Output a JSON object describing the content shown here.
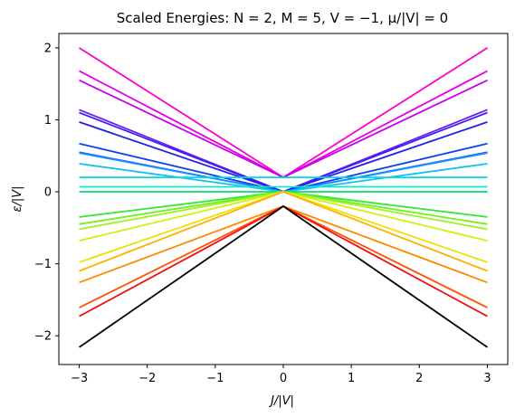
{
  "chart_data": {
    "type": "line",
    "title": "Scaled Energies: N = 2, M = 5, V = −1, μ/|V| = 0",
    "xlabel": "J/|V|",
    "ylabel": "ε/|V|",
    "xlim": [
      -3.3,
      3.3
    ],
    "ylim": [
      -2.4,
      2.2
    ],
    "xticks": [
      -3,
      -2,
      -1,
      0,
      1,
      2,
      3
    ],
    "xtick_labels": [
      "−3",
      "−2",
      "−1",
      "0",
      "1",
      "2",
      "3"
    ],
    "yticks": [
      -2,
      -1,
      0,
      1,
      2
    ],
    "ytick_labels": [
      "−2",
      "−1",
      "0",
      "1",
      "2"
    ],
    "grid": false,
    "legend": "none",
    "x": [
      -3,
      0,
      3
    ],
    "series": [
      {
        "values": [
          2.0,
          0.2,
          2.0
        ],
        "color": "#ff00c8"
      },
      {
        "values": [
          1.68,
          0.2,
          1.68
        ],
        "color": "#e600e6"
      },
      {
        "values": [
          1.55,
          0.2,
          1.55
        ],
        "color": "#c800f0"
      },
      {
        "values": [
          1.14,
          0.0,
          1.14
        ],
        "color": "#6a1cf0"
      },
      {
        "values": [
          1.1,
          0.0,
          1.1
        ],
        "color": "#4020f0"
      },
      {
        "values": [
          0.97,
          0.0,
          0.97
        ],
        "color": "#2020e8"
      },
      {
        "values": [
          0.67,
          0.0,
          0.67
        ],
        "color": "#1040f0"
      },
      {
        "values": [
          0.55,
          0.0,
          0.55
        ],
        "color": "#1060ff"
      },
      {
        "values": [
          0.54,
          0.0,
          0.54
        ],
        "color": "#1890ff"
      },
      {
        "values": [
          0.39,
          0.0,
          0.39
        ],
        "color": "#10c0f0"
      },
      {
        "values": [
          0.2,
          0.2,
          0.2
        ],
        "color": "#00d8e8"
      },
      {
        "values": [
          0.07,
          0.07,
          0.07
        ],
        "color": "#10e8c8"
      },
      {
        "values": [
          0.0,
          0.0,
          0.0
        ],
        "color": "#00e070"
      },
      {
        "values": [
          -0.35,
          0.0,
          -0.35
        ],
        "color": "#30e830"
      },
      {
        "values": [
          -0.45,
          0.0,
          -0.45
        ],
        "color": "#70f020"
      },
      {
        "values": [
          -0.52,
          0.0,
          -0.52
        ],
        "color": "#a0f020"
      },
      {
        "values": [
          -0.68,
          0.0,
          -0.68
        ],
        "color": "#d0f010"
      },
      {
        "values": [
          -0.98,
          0.0,
          -0.98
        ],
        "color": "#f0e000"
      },
      {
        "values": [
          -1.1,
          0.0,
          -1.1
        ],
        "color": "#ffb000"
      },
      {
        "values": [
          -1.26,
          -0.2,
          -1.26
        ],
        "color": "#ff8800"
      },
      {
        "values": [
          -1.61,
          -0.2,
          -1.61
        ],
        "color": "#ff5000"
      },
      {
        "values": [
          -1.73,
          -0.2,
          -1.73
        ],
        "color": "#f01010"
      },
      {
        "values": [
          -2.16,
          -0.2,
          -2.16
        ],
        "color": "#000000"
      }
    ]
  }
}
